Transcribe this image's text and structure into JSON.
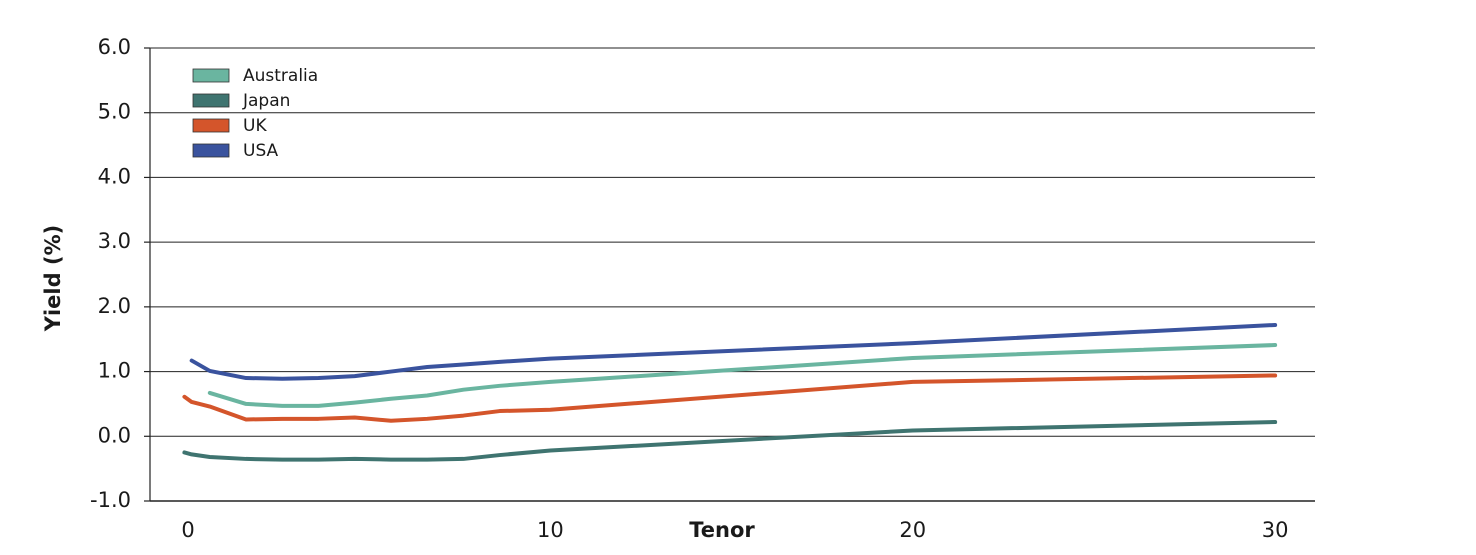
{
  "chart_data": {
    "type": "line",
    "xlabel": "Tenor",
    "ylabel": "Yield (%)",
    "x": [
      -0.1,
      0.1,
      0.6,
      1.6,
      2.6,
      3.6,
      4.6,
      5.6,
      6.6,
      7.6,
      8.6,
      10,
      20,
      30
    ],
    "series": [
      {
        "name": "Australia",
        "color": "#6ab5a0",
        "values": [
          null,
          null,
          0.67,
          0.5,
          0.47,
          0.47,
          0.52,
          0.58,
          0.63,
          0.72,
          0.78,
          0.84,
          1.21,
          1.41
        ]
      },
      {
        "name": "Japan",
        "color": "#3f7470",
        "values": [
          -0.25,
          -0.28,
          -0.32,
          -0.35,
          -0.36,
          -0.36,
          -0.35,
          -0.36,
          -0.36,
          -0.35,
          -0.29,
          -0.22,
          0.09,
          0.22
        ]
      },
      {
        "name": "UK",
        "color": "#d4552b",
        "values": [
          0.61,
          0.53,
          0.46,
          0.26,
          0.27,
          0.27,
          0.29,
          0.24,
          0.27,
          0.32,
          0.39,
          0.41,
          0.84,
          0.94
        ]
      },
      {
        "name": "USA",
        "color": "#3a539e",
        "values": [
          null,
          1.17,
          1.01,
          0.9,
          0.89,
          0.9,
          0.93,
          1.0,
          1.07,
          1.11,
          1.15,
          1.2,
          1.44,
          1.72
        ]
      }
    ],
    "xlim": [
      -1.05,
      31.1
    ],
    "xticks": [
      0,
      10,
      20,
      30
    ],
    "ylim": [
      -1,
      6
    ],
    "yticks": [
      {
        "value": -1,
        "label": "-1.0"
      },
      {
        "value": 0,
        "label": "0.0"
      },
      {
        "value": 1,
        "label": "1.0"
      },
      {
        "value": 2,
        "label": "2.0"
      },
      {
        "value": 3,
        "label": "3.0"
      },
      {
        "value": 4,
        "label": "4.0"
      },
      {
        "value": 5,
        "label": "5.0"
      },
      {
        "value": 6,
        "label": "6.0"
      }
    ],
    "grid": true,
    "legend": "upper left"
  }
}
